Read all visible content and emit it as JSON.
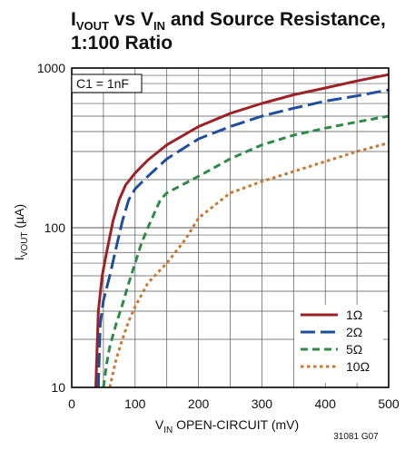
{
  "chart_data": {
    "type": "line",
    "title": {
      "line1": {
        "a": "I",
        "a_sub": "VOUT",
        "b": " vs V",
        "b_sub": "IN",
        "c": " and Source Resistance,"
      },
      "line2": "1:100 Ratio"
    },
    "xlabel": {
      "a": "V",
      "a_sub": "IN",
      "b": " OPEN-CIRCUIT (mV)"
    },
    "ylabel": {
      "a": "I",
      "a_sub": "VOUT",
      "b": " (µA)"
    },
    "xlim": [
      0,
      500
    ],
    "ylim": [
      10,
      1000
    ],
    "y_scale": "log",
    "x_ticks": [
      "0",
      "100",
      "200",
      "300",
      "400",
      "500"
    ],
    "y_ticks": [
      "10",
      "100",
      "1000"
    ],
    "grid": true,
    "legend_position": "bottom-right",
    "annotation": "C1 = 1nF",
    "figure_id": "31081 G07",
    "series": [
      {
        "name": "1Ω",
        "color": "#9b2226",
        "dash": "solid",
        "x": [
          38,
          42,
          48,
          55,
          65,
          75,
          85,
          100,
          120,
          150,
          200,
          250,
          300,
          350,
          400,
          450,
          500
        ],
        "y": [
          10,
          30,
          50,
          70,
          110,
          150,
          185,
          220,
          265,
          330,
          430,
          520,
          600,
          680,
          750,
          830,
          910
        ]
      },
      {
        "name": "2Ω",
        "color": "#1f4e9c",
        "dash": "long",
        "x": [
          42,
          45,
          50,
          60,
          70,
          80,
          90,
          100,
          120,
          150,
          200,
          250,
          300,
          350,
          400,
          450,
          500
        ],
        "y": [
          10,
          25,
          35,
          50,
          75,
          110,
          150,
          175,
          210,
          270,
          360,
          430,
          500,
          560,
          620,
          670,
          730
        ]
      },
      {
        "name": "5Ω",
        "color": "#2e8b46",
        "dash": "medium",
        "x": [
          50,
          55,
          60,
          70,
          80,
          90,
          100,
          110,
          120,
          140,
          150,
          200,
          250,
          300,
          350,
          400,
          450,
          500
        ],
        "y": [
          10,
          14,
          18,
          25,
          33,
          45,
          60,
          80,
          100,
          150,
          165,
          210,
          270,
          330,
          380,
          420,
          460,
          500
        ]
      },
      {
        "name": "10Ω",
        "color": "#c77a32",
        "dash": "dot",
        "x": [
          60,
          70,
          80,
          90,
          100,
          120,
          150,
          180,
          200,
          250,
          300,
          350,
          400,
          450,
          500
        ],
        "y": [
          10,
          15,
          20,
          26,
          32,
          45,
          60,
          85,
          115,
          165,
          195,
          225,
          260,
          300,
          340
        ]
      }
    ]
  }
}
